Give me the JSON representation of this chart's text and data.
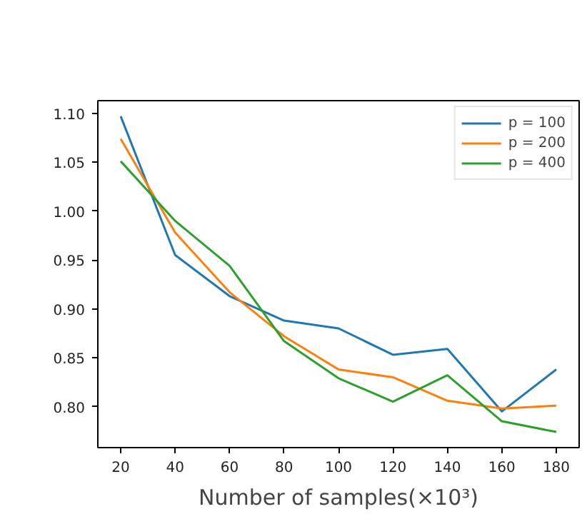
{
  "chart_data": {
    "type": "line",
    "xlabel": "Number of samples(×10³)",
    "x": [
      20,
      40,
      60,
      80,
      100,
      120,
      140,
      160,
      180
    ],
    "xlim": [
      11.6,
      188.4
    ],
    "ylim": [
      0.758,
      1.113
    ],
    "xticks": [
      20,
      40,
      60,
      80,
      100,
      120,
      140,
      160,
      180
    ],
    "yticks": [
      {
        "value": 0.8,
        "label": "0.80"
      },
      {
        "value": 0.85,
        "label": "0.85"
      },
      {
        "value": 0.9,
        "label": "0.90"
      },
      {
        "value": 0.95,
        "label": "0.95"
      },
      {
        "value": 1.0,
        "label": "1.00"
      },
      {
        "value": 1.05,
        "label": "1.05"
      },
      {
        "value": 1.1,
        "label": "1.10"
      }
    ],
    "legend": "top right",
    "grid": false,
    "series": [
      {
        "name": "p = 100",
        "color": "#1f77b4",
        "values": [
          1.097,
          0.955,
          0.913,
          0.888,
          0.88,
          0.853,
          0.859,
          0.795,
          0.838
        ]
      },
      {
        "name": "p = 200",
        "color": "#ff7f0e",
        "values": [
          1.074,
          0.978,
          0.917,
          0.872,
          0.838,
          0.83,
          0.806,
          0.798,
          0.801
        ]
      },
      {
        "name": "p = 400",
        "color": "#2ca02c",
        "values": [
          1.051,
          0.99,
          0.944,
          0.867,
          0.829,
          0.805,
          0.832,
          0.785,
          0.774
        ]
      }
    ]
  }
}
